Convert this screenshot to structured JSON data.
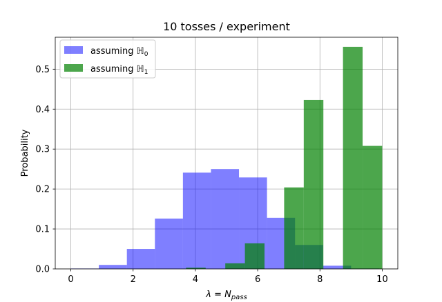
{
  "chart_data": {
    "type": "bar",
    "title": "10 tosses / experiment",
    "xlabel": "λ = N",
    "xlabel_sub": "pass",
    "ylabel": "Probability",
    "xlim": [
      -0.5,
      10.5
    ],
    "ylim": [
      0,
      0.58
    ],
    "xticks": [
      0,
      2,
      4,
      6,
      8,
      10
    ],
    "yticks": [
      0.0,
      0.1,
      0.2,
      0.3,
      0.4,
      0.5
    ],
    "xtick_labels": [
      "0",
      "2",
      "4",
      "6",
      "8",
      "10"
    ],
    "ytick_labels": [
      "0.0",
      "0.1",
      "0.2",
      "0.3",
      "0.4",
      "0.5"
    ],
    "grid": true,
    "legend_position": "top-left",
    "series": [
      {
        "name": "assuming ℍ0",
        "legend_text": "assuming ",
        "legend_math": "ℍ",
        "legend_sub": "0",
        "color": "#0000ff",
        "alpha": 0.5,
        "bins": [
          {
            "x0": 0.0,
            "x1": 0.9,
            "value": 0.001
          },
          {
            "x0": 0.9,
            "x1": 1.8,
            "value": 0.01
          },
          {
            "x0": 1.8,
            "x1": 2.7,
            "value": 0.05
          },
          {
            "x0": 2.7,
            "x1": 3.6,
            "value": 0.126
          },
          {
            "x0": 3.6,
            "x1": 4.5,
            "value": 0.241
          },
          {
            "x0": 4.5,
            "x1": 5.4,
            "value": 0.25
          },
          {
            "x0": 5.4,
            "x1": 6.3,
            "value": 0.229
          },
          {
            "x0": 6.3,
            "x1": 7.2,
            "value": 0.128
          },
          {
            "x0": 7.2,
            "x1": 8.1,
            "value": 0.06
          },
          {
            "x0": 8.1,
            "x1": 9.0,
            "value": 0.008
          },
          {
            "x0": 9.0,
            "x1": 9.9,
            "value": 0.001
          }
        ]
      },
      {
        "name": "assuming ℍ1",
        "legend_text": "assuming ",
        "legend_math": "ℍ",
        "legend_sub": "1",
        "color": "#008000",
        "alpha": 0.7,
        "bins": [
          {
            "x0": 3.7,
            "x1": 4.33,
            "value": 0.003
          },
          {
            "x0": 4.33,
            "x1": 4.96,
            "value": 0.0
          },
          {
            "x0": 4.96,
            "x1": 5.59,
            "value": 0.014
          },
          {
            "x0": 5.59,
            "x1": 6.22,
            "value": 0.064
          },
          {
            "x0": 6.22,
            "x1": 6.85,
            "value": 0.0
          },
          {
            "x0": 6.85,
            "x1": 7.48,
            "value": 0.204
          },
          {
            "x0": 7.48,
            "x1": 8.11,
            "value": 0.423
          },
          {
            "x0": 8.11,
            "x1": 8.74,
            "value": 0.0
          },
          {
            "x0": 8.74,
            "x1": 9.37,
            "value": 0.556
          },
          {
            "x0": 9.37,
            "x1": 10.0,
            "value": 0.308
          }
        ]
      }
    ]
  }
}
